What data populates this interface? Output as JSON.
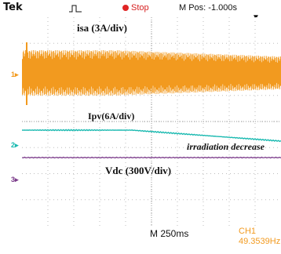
{
  "header": {
    "brand": "Tek",
    "trigger_icon": "pulse-trigger-icon",
    "status": "Stop",
    "status_color": "#e02424",
    "mpos_label": "M Pos: -1.000s",
    "trigger_point_icon": "down-arrow-icon"
  },
  "channels": {
    "ch1": {
      "marker": "1",
      "color": "#f29a1f"
    },
    "ch2": {
      "marker": "2",
      "color": "#19b9b0"
    },
    "ch3": {
      "marker": "3",
      "color": "#7b3b8a"
    }
  },
  "labels": {
    "isa": "isa (3A/div)",
    "ipv": "Ipv(6A/div)",
    "vdc": "Vdc (300V/div)",
    "irradiation": "irradiation decrease"
  },
  "footer": {
    "timebase": "M 250ms",
    "readout_channel": "CH1",
    "readout_value": "49.3539Hz"
  }
}
